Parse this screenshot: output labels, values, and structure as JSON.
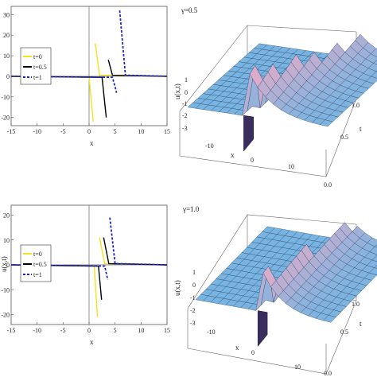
{
  "chart_data": [
    {
      "type": "line",
      "xlabel": "x",
      "ylabel": "",
      "xlim": [
        -15,
        15
      ],
      "ylim": [
        -24,
        34
      ],
      "xticks": [
        "-15",
        "-10",
        "-5",
        "0",
        "5",
        "10",
        "15"
      ],
      "yticks": [
        "-20",
        "-10",
        "0",
        "10",
        "20",
        "30"
      ],
      "legend_position": "left",
      "series": [
        {
          "name": "t=0",
          "color": "#f5e21a",
          "style": "solid",
          "pole": 1.0,
          "x": [
            -15,
            0,
            0.8,
            1.2,
            2,
            15
          ],
          "y": [
            0,
            -0.5,
            -22,
            16,
            0.5,
            0
          ]
        },
        {
          "name": "t=0.5",
          "color": "#000000",
          "style": "solid",
          "pole": 3.5,
          "x": [
            -15,
            2.5,
            3.3,
            3.7,
            4.5,
            15
          ],
          "y": [
            0,
            -0.5,
            -20,
            8,
            0.5,
            0
          ]
        },
        {
          "name": "t=1",
          "color": "#1f22c8",
          "style": "dashed",
          "pole": 5.6,
          "x": [
            -15,
            4.5,
            5.3,
            5.9,
            7,
            15
          ],
          "y": [
            0,
            -0.5,
            -8,
            32,
            0.5,
            0
          ]
        }
      ]
    },
    {
      "type": "surface",
      "title": "γ=0.5",
      "xlabel": "x",
      "ylabel": "t",
      "zlabel": "u(x,t)",
      "xticks": [
        "-10",
        "0",
        "10"
      ],
      "yticks": [
        "0.0",
        "0.5",
        "1.0"
      ],
      "zticks": [
        "1",
        "0",
        "-1",
        "-2",
        "-3"
      ]
    },
    {
      "type": "line",
      "xlabel": "x",
      "ylabel": "u(x,t)",
      "xlim": [
        -15,
        15
      ],
      "ylim": [
        -24,
        24
      ],
      "xticks": [
        "-15",
        "-10",
        "-5",
        "0",
        "5",
        "10",
        "15"
      ],
      "yticks": [
        "-20",
        "-10",
        "0",
        "10",
        "20"
      ],
      "legend_position": "left",
      "series": [
        {
          "name": "t=0",
          "color": "#f5e21a",
          "style": "solid",
          "pole": 1.8,
          "x": [
            -15,
            1,
            1.6,
            2.0,
            3,
            15
          ],
          "y": [
            0,
            -0.5,
            -21,
            11,
            0.5,
            0
          ]
        },
        {
          "name": "t=0.5",
          "color": "#000000",
          "style": "solid",
          "pole": 2.6,
          "x": [
            -15,
            1.8,
            2.4,
            2.8,
            3.8,
            15
          ],
          "y": [
            0,
            -0.5,
            -14,
            11,
            0.5,
            0
          ]
        },
        {
          "name": "t=1",
          "color": "#1f22c8",
          "style": "dashed",
          "pole": 3.8,
          "x": [
            -15,
            3,
            3.6,
            4.0,
            5,
            15
          ],
          "y": [
            0,
            -0.5,
            -6,
            19,
            0.5,
            0
          ]
        }
      ]
    },
    {
      "type": "surface",
      "title": "γ=1.0",
      "xlabel": "x",
      "ylabel": "t",
      "zlabel": "u(x,t)",
      "xticks": [
        "-10",
        "0",
        "10"
      ],
      "yticks": [
        "0.0",
        "0.5",
        "1.0"
      ],
      "zticks": [
        "1",
        "0",
        "-1",
        "-2",
        "-3"
      ]
    }
  ]
}
